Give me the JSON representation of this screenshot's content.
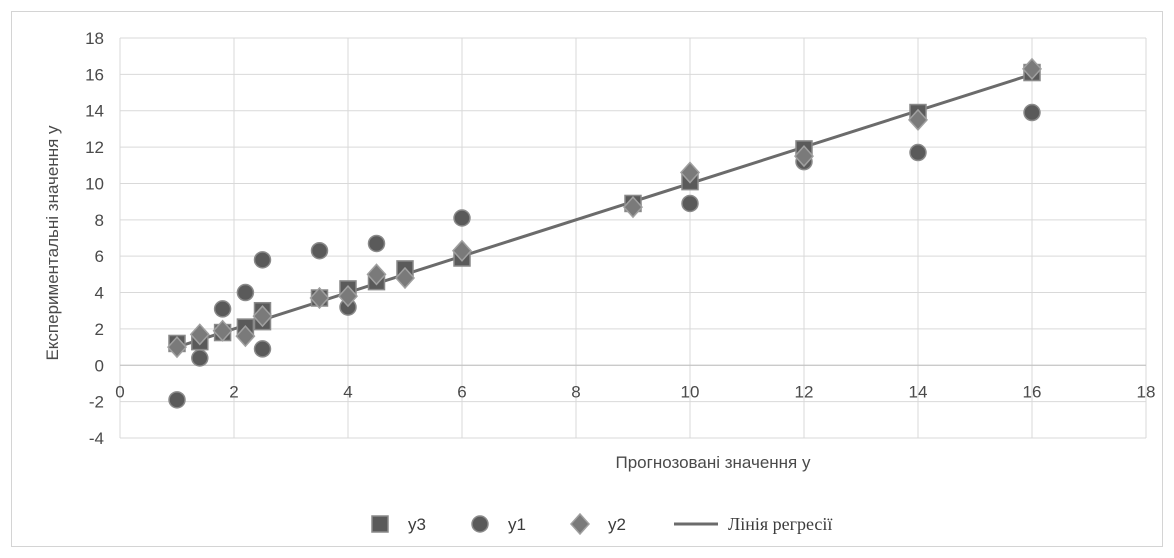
{
  "chart_data": {
    "type": "scatter",
    "xlabel": "Прогнозовані значення y",
    "ylabel": "Експериментальні значення y",
    "xlim": [
      0,
      18
    ],
    "ylim": [
      -4,
      18
    ],
    "x_ticks": [
      0,
      2,
      4,
      6,
      8,
      10,
      12,
      14,
      16,
      18
    ],
    "y_ticks": [
      -4,
      -2,
      0,
      2,
      4,
      6,
      8,
      10,
      12,
      14,
      16,
      18
    ],
    "grid": true,
    "legend_position": "bottom",
    "series": [
      {
        "name": "y3",
        "marker": "square",
        "color": "#555555",
        "points": [
          [
            1,
            1.2
          ],
          [
            1.4,
            1.3
          ],
          [
            1.8,
            1.8
          ],
          [
            2.2,
            2.1
          ],
          [
            2.5,
            3.0
          ],
          [
            2.5,
            2.4
          ],
          [
            3.5,
            3.7
          ],
          [
            4,
            4.2
          ],
          [
            4.5,
            4.6
          ],
          [
            5,
            5.3
          ],
          [
            6,
            5.9
          ],
          [
            9,
            8.9
          ],
          [
            10,
            10.1
          ],
          [
            12,
            11.9
          ],
          [
            14,
            13.9
          ],
          [
            16,
            16.1
          ]
        ]
      },
      {
        "name": "y1",
        "marker": "circle",
        "color": "#555555",
        "points": [
          [
            1,
            -1.9
          ],
          [
            1.4,
            0.4
          ],
          [
            1.8,
            3.1
          ],
          [
            2.2,
            4.0
          ],
          [
            2.5,
            0.9
          ],
          [
            2.5,
            5.8
          ],
          [
            3.5,
            6.3
          ],
          [
            4,
            3.2
          ],
          [
            4.5,
            6.7
          ],
          [
            6,
            8.1
          ],
          [
            9,
            8.8
          ],
          [
            10,
            8.9
          ],
          [
            12,
            11.2
          ],
          [
            14,
            11.7
          ],
          [
            16,
            13.9
          ]
        ]
      },
      {
        "name": "y2",
        "marker": "diamond",
        "color": "#555555",
        "points": [
          [
            1,
            1.0
          ],
          [
            1.4,
            1.7
          ],
          [
            1.8,
            1.9
          ],
          [
            2.2,
            1.6
          ],
          [
            2.5,
            2.7
          ],
          [
            3.5,
            3.7
          ],
          [
            4,
            3.8
          ],
          [
            4.5,
            5.0
          ],
          [
            5,
            4.8
          ],
          [
            6,
            6.3
          ],
          [
            9,
            8.7
          ],
          [
            10,
            10.6
          ],
          [
            12,
            11.5
          ],
          [
            14,
            13.5
          ],
          [
            16,
            16.3
          ]
        ]
      },
      {
        "name": "Лінія регресії",
        "marker": "line",
        "color": "#6b6b6b",
        "points": [
          [
            1,
            1
          ],
          [
            16,
            16
          ]
        ]
      }
    ]
  }
}
